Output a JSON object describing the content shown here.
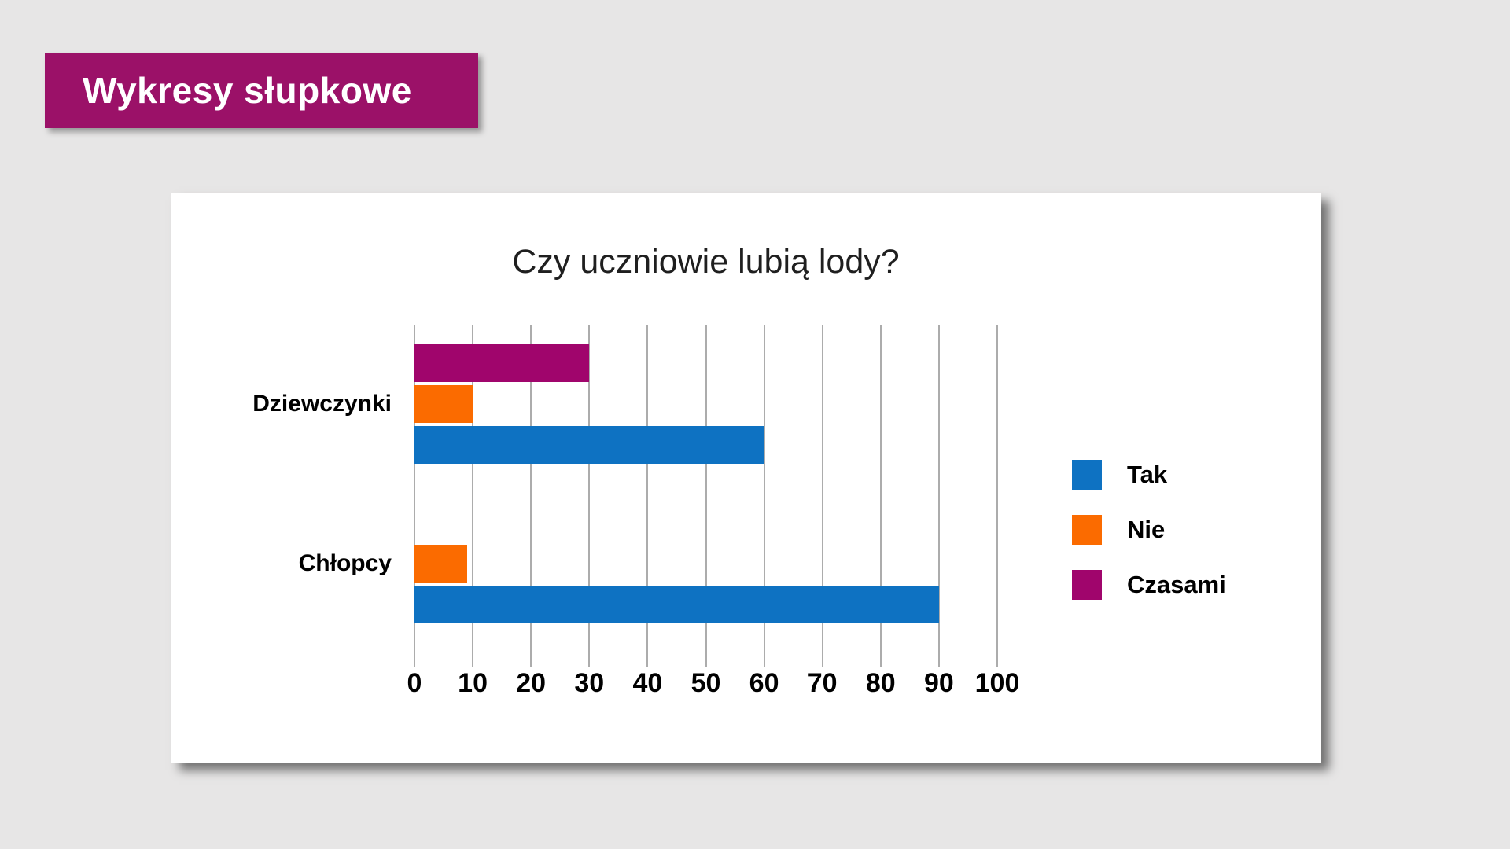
{
  "page": {
    "background": "#E7E6E6"
  },
  "banner": {
    "title": "Wykresy słupkowe",
    "color": "#9B1168",
    "text_color": "#FFFFFF"
  },
  "card": {
    "background": "#FFFFFF"
  },
  "chart_data": {
    "type": "bar",
    "orientation": "horizontal",
    "title": "Czy uczniowie lubią lody?",
    "categories": [
      "Dziewczynki",
      "Chłopcy"
    ],
    "series": [
      {
        "name": "Tak",
        "color": "#0E72C2",
        "values": [
          60,
          90
        ]
      },
      {
        "name": "Nie",
        "color": "#FB6B00",
        "values": [
          10,
          9
        ]
      },
      {
        "name": "Czasami",
        "color": "#A0056C",
        "values": [
          30,
          0
        ]
      }
    ],
    "bar_order_top_to_bottom": [
      "Czasami",
      "Nie",
      "Tak"
    ],
    "x_ticks": [
      0,
      10,
      20,
      30,
      40,
      50,
      60,
      70,
      80,
      90,
      100
    ],
    "xlim": [
      0,
      100
    ],
    "grid": true,
    "grid_color": "#ACACAC",
    "legend_position": "right",
    "legend": [
      "Tak",
      "Nie",
      "Czasami"
    ]
  }
}
